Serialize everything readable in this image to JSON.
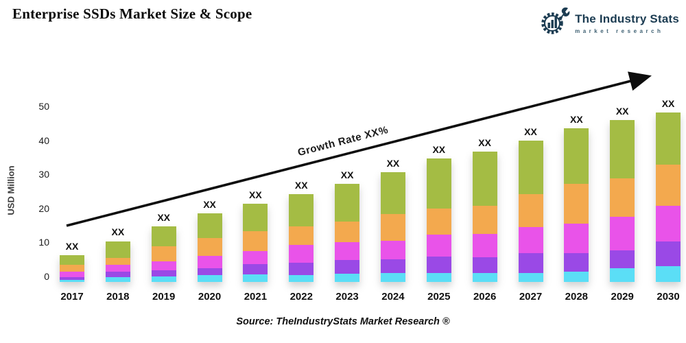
{
  "header": {
    "title": "Enterprise SSDs Market Size & Scope",
    "logo": {
      "name": "The Industry Stats",
      "tagline": "market research",
      "color": "#1c3c52"
    }
  },
  "chart_data": {
    "type": "bar",
    "stacked": true,
    "title": "Enterprise SSDs Market Size & Scope",
    "xlabel": "",
    "ylabel": "USD Million",
    "ylim": [
      0,
      50
    ],
    "yticks": [
      0,
      10,
      20,
      30,
      40,
      50
    ],
    "grid": false,
    "legend": "none",
    "categories": [
      "2017",
      "2018",
      "2019",
      "2020",
      "2021",
      "2022",
      "2023",
      "2024",
      "2025",
      "2026",
      "2027",
      "2028",
      "2029",
      "2030"
    ],
    "series": [
      {
        "name": "series-1-bottom",
        "color": "#5bdef6",
        "values": [
          0.6,
          1.4,
          1.6,
          2.0,
          2.2,
          2.0,
          2.4,
          2.6,
          2.6,
          2.6,
          2.6,
          3.0,
          4.0,
          4.6
        ]
      },
      {
        "name": "series-2",
        "color": "#9a49e6",
        "values": [
          0.8,
          1.6,
          1.8,
          2.0,
          3.0,
          3.6,
          4.0,
          4.0,
          4.8,
          4.6,
          5.8,
          5.4,
          5.2,
          7.3
        ]
      },
      {
        "name": "series-3",
        "color": "#e953e9",
        "values": [
          1.6,
          2.0,
          2.6,
          3.6,
          3.8,
          5.2,
          5.4,
          5.6,
          6.5,
          6.9,
          7.7,
          8.7,
          9.9,
          10.5
        ]
      },
      {
        "name": "series-4",
        "color": "#f3a94e",
        "values": [
          2.0,
          2.0,
          4.4,
          5.4,
          6.0,
          5.6,
          6.0,
          7.7,
          7.7,
          8.3,
          9.7,
          11.7,
          11.3,
          12.1
        ]
      },
      {
        "name": "series-5-top",
        "color": "#a4bc44",
        "values": [
          2.8,
          5.0,
          6.0,
          7.1,
          7.9,
          9.5,
          11.1,
          12.3,
          14.7,
          15.9,
          15.7,
          16.3,
          17.1,
          15.3
        ]
      }
    ],
    "bar_labels": [
      "XX",
      "XX",
      "XX",
      "XX",
      "XX",
      "XX",
      "XX",
      "XX",
      "XX",
      "XX",
      "XX",
      "XX",
      "XX",
      "XX"
    ],
    "annotation": {
      "text": "Growth Rate XX%",
      "arrow": true
    }
  },
  "footer": {
    "source": "Source: TheIndustryStats Market Research ®"
  }
}
